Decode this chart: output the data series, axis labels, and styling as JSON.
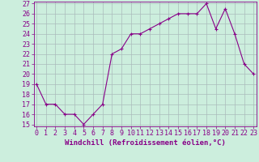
{
  "x": [
    0,
    1,
    2,
    3,
    4,
    5,
    6,
    7,
    8,
    9,
    10,
    11,
    12,
    13,
    14,
    15,
    16,
    17,
    18,
    19,
    20,
    21,
    22,
    23
  ],
  "y": [
    19,
    17,
    17,
    16,
    16,
    15,
    16,
    17,
    22,
    22.5,
    24,
    24,
    24.5,
    25,
    25.5,
    26,
    26,
    26,
    27,
    24.5,
    26.5,
    24,
    21,
    20
  ],
  "line_color": "#880088",
  "marker": "+",
  "marker_size": 3,
  "marker_lw": 0.8,
  "bg_color": "#cceedd",
  "grid_color": "#aabbbb",
  "ylim": [
    15,
    27
  ],
  "xlim": [
    -0.3,
    23.3
  ],
  "yticks": [
    15,
    16,
    17,
    18,
    19,
    20,
    21,
    22,
    23,
    24,
    25,
    26,
    27
  ],
  "xticks": [
    0,
    1,
    2,
    3,
    4,
    5,
    6,
    7,
    8,
    9,
    10,
    11,
    12,
    13,
    14,
    15,
    16,
    17,
    18,
    19,
    20,
    21,
    22,
    23
  ],
  "font_color": "#880088",
  "xlabel": "Windchill (Refroidissement éolien,°C)",
  "xlabel_fontsize": 6.5,
  "tick_fontsize": 6.0,
  "line_width": 0.8
}
